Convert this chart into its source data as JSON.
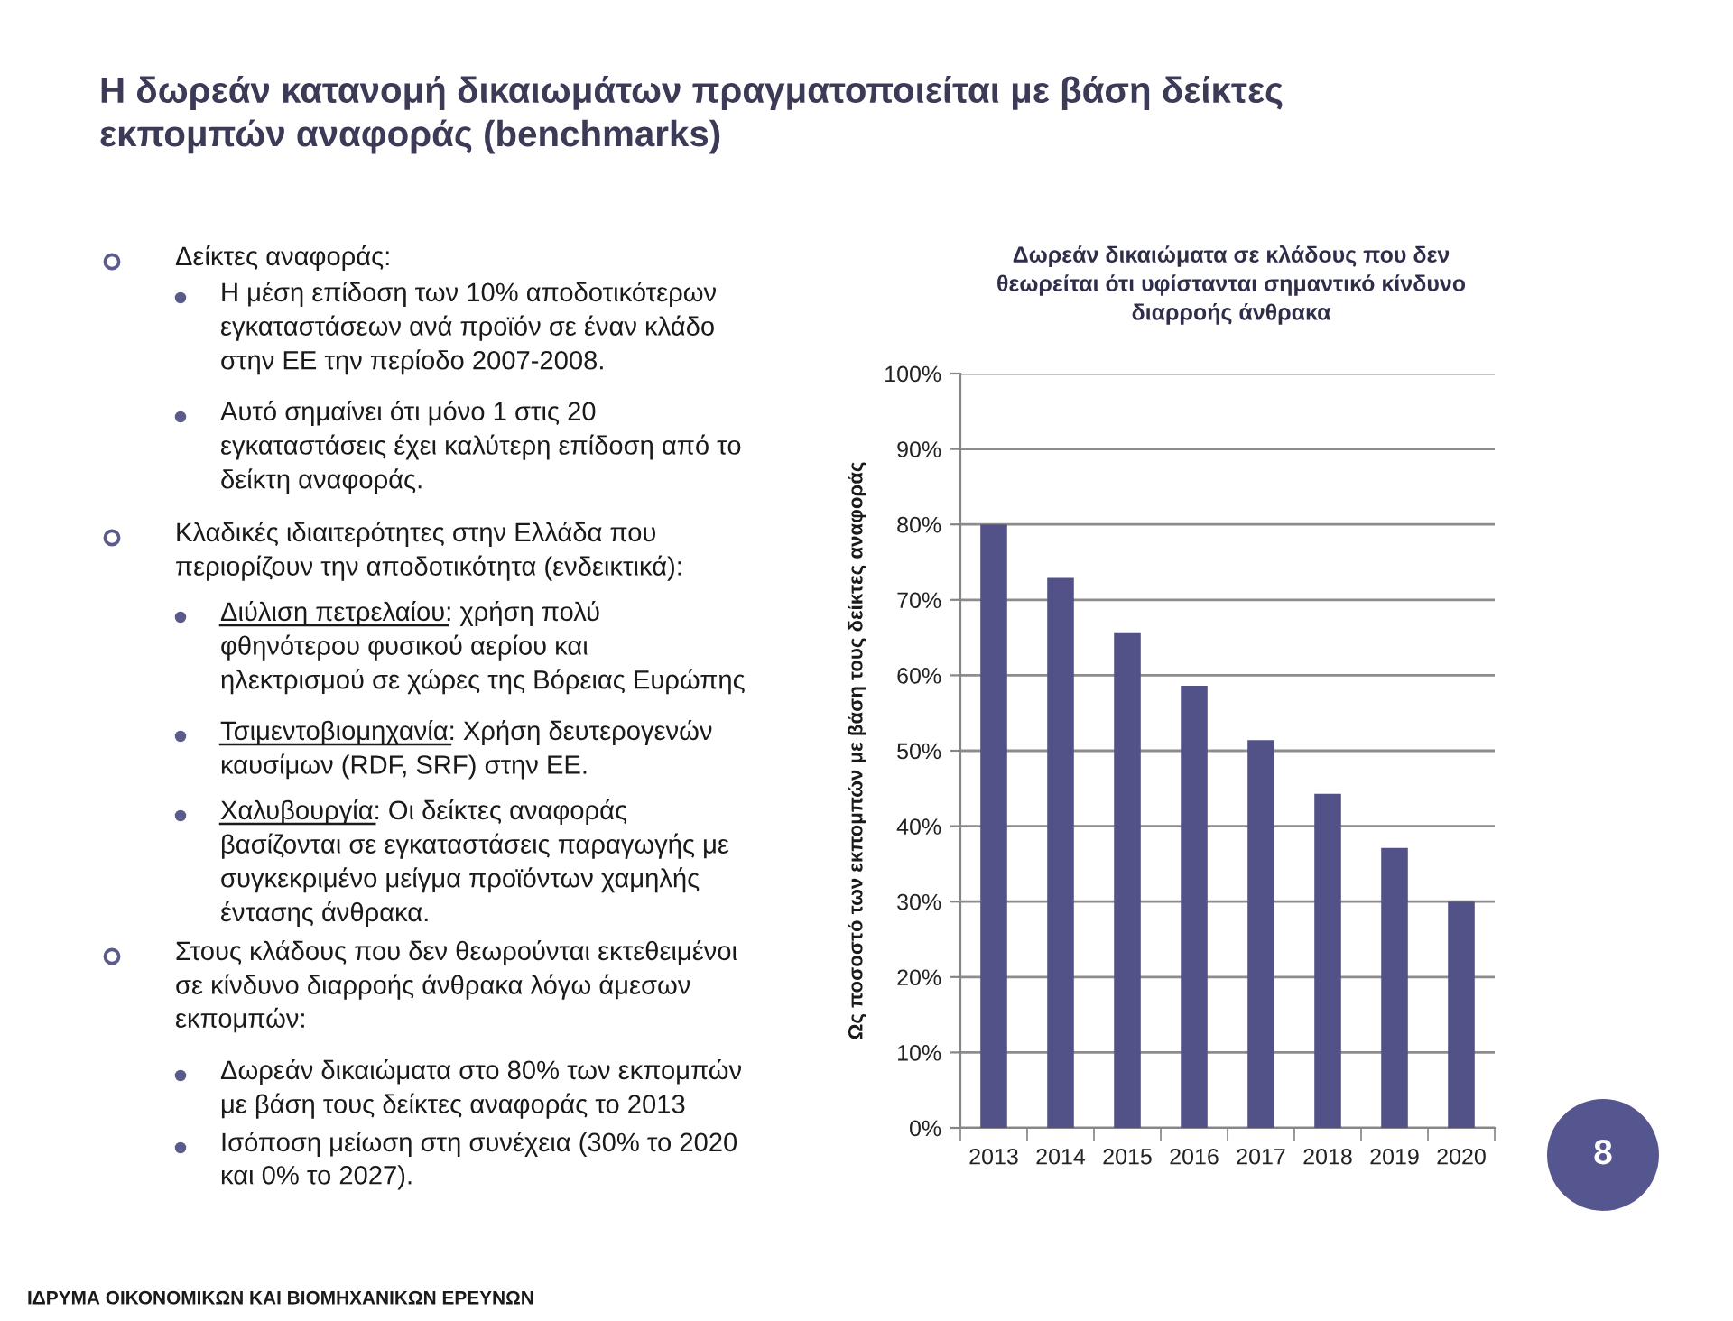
{
  "chart_data": {
    "type": "bar",
    "title": "Η δωρεάν κατανομή δικαιωμάτων πραγματοποιείται με βάση δείκτες\nεκπομπών αναφοράς (benchmarks)",
    "subtitle": "Δωρεάν δικαιώματα σε κλάδους που δεν\nθεωρείται ότι υφίστανται σημαντικό κίνδυνο\nδιαρροής άνθρακα",
    "ylabel": "Ως ποσοστό των εκπομπών με βάση τους δείκτες αναφοράς",
    "categories": [
      "2013",
      "2014",
      "2015",
      "2016",
      "2017",
      "2018",
      "2019",
      "2020"
    ],
    "values": [
      80,
      72.9,
      65.7,
      58.6,
      51.4,
      44.3,
      37.1,
      30
    ],
    "color": "#525289",
    "ylim": [
      0,
      100
    ],
    "yticks": [
      {
        "value": 0,
        "label": "0%"
      },
      {
        "value": 10,
        "label": "10%"
      },
      {
        "value": 20,
        "label": "20%"
      },
      {
        "value": 30,
        "label": "30%"
      },
      {
        "value": 40,
        "label": "40%"
      },
      {
        "value": 50,
        "label": "50%"
      },
      {
        "value": 60,
        "label": "60%"
      },
      {
        "value": 70,
        "label": "70%"
      },
      {
        "value": 80,
        "label": "80%"
      },
      {
        "value": 90,
        "label": "90%"
      },
      {
        "value": 100,
        "label": "100%"
      }
    ],
    "grid": "y",
    "annotations": [
      "Δείκτες αναφοράς:",
      "Η μέση επίδοση των 10% αποδοτικότερων\nεγκαταστάσεων ανά προϊόν σε έναν κλάδο\nστην ΕΕ την περίοδο 2007-2008.",
      "Αυτό σημαίνει ότι μόνο 1 στις 20\nεγκαταστάσεις έχει καλύτερη επίδοση από το\nδείκτη αναφοράς.",
      "Κλαδικές ιδιαιτερότητες στην Ελλάδα που\nπεριορίζουν την αποδοτικότητα (ενδεικτικά):",
      "Διύλιση πετρελαίου: χρήση πολύ\nφθηνότερου φυσικού αερίου και\nηλεκτρισμού σε χώρες της Βόρειας Ευρώπης",
      "Τσιμεντοβιομηχανία: Χρήση δευτερογενών\nκαυσίμων (RDF, SRF) στην ΕΕ.",
      "Χαλυβουργία: Οι δείκτες αναφοράς\nβασίζονται σε εγκαταστάσεις παραγωγής με\nσυγκεκριμένο μείγμα προϊόντων χαμηλής\nέντασης άνθρακα.",
      "Στους κλάδους που δεν θεωρούνται εκτεθειμένοι\nσε κίνδυνο διαρροής άνθρακα λόγω άμεσων\nεκπομπών:",
      "Δωρεάν δικαιώματα στο 80% των εκπομπών\nμε βάση τους δείκτες αναφοράς το 2013",
      "Ισόποση μείωση στη συνέχεια (30% το 2020\nκαι 0% το 2027).",
      "ΙΔΡΥΜΑ ΟΙΚΟΝΟΜΙΚΩΝ ΚΑΙ ΒΙΟΜΗΧΑΝΙΚΩΝ ΕΡΕΥΝΩΝ",
      "8"
    ]
  }
}
